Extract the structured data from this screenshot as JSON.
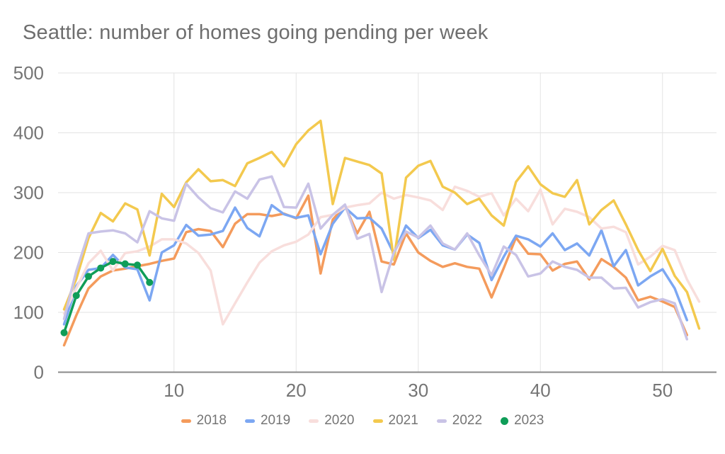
{
  "chart_data": {
    "type": "line",
    "title": "Seattle: number of homes going pending per week",
    "xlabel": "",
    "ylabel": "",
    "xlim": [
      1,
      53
    ],
    "ylim": [
      0,
      500
    ],
    "x_ticks": [
      10,
      20,
      30,
      40,
      50
    ],
    "y_ticks": [
      0,
      100,
      200,
      300,
      400,
      500
    ],
    "grid": true,
    "legend_position": "bottom",
    "colors": {
      "grid": "#e3e3e3",
      "axis": "#8a8a8a",
      "axis_text": "#757575",
      "title_text": "#6e6e6e"
    },
    "series": [
      {
        "name": "2018",
        "color": "#F49B5C",
        "marker": "none",
        "start_week": 1,
        "values": [
          45,
          95,
          140,
          160,
          170,
          173,
          177,
          181,
          186,
          190,
          234,
          239,
          236,
          209,
          248,
          264,
          264,
          261,
          265,
          257,
          295,
          165,
          255,
          278,
          232,
          268,
          185,
          180,
          232,
          200,
          186,
          176,
          182,
          176,
          173,
          125,
          174,
          225,
          198,
          197,
          170,
          181,
          185,
          155,
          189,
          176,
          158,
          120,
          126,
          118,
          109,
          62
        ]
      },
      {
        "name": "2019",
        "color": "#7CA7F2",
        "marker": "none",
        "start_week": 1,
        "values": [
          80,
          144,
          171,
          174,
          196,
          175,
          172,
          120,
          200,
          212,
          246,
          228,
          230,
          236,
          275,
          241,
          227,
          279,
          264,
          258,
          262,
          197,
          248,
          275,
          257,
          258,
          240,
          198,
          245,
          224,
          238,
          212,
          205,
          230,
          216,
          154,
          193,
          228,
          222,
          210,
          232,
          204,
          215,
          195,
          237,
          177,
          204,
          145,
          160,
          172,
          140,
          87
        ]
      },
      {
        "name": "2020",
        "color": "#F8DEDC",
        "marker": "none",
        "start_week": 1,
        "values": [
          98,
          140,
          182,
          203,
          170,
          199,
          202,
          210,
          222,
          222,
          215,
          199,
          170,
          80,
          115,
          150,
          183,
          202,
          212,
          218,
          230,
          259,
          263,
          275,
          279,
          282,
          300,
          290,
          296,
          292,
          287,
          271,
          310,
          303,
          293,
          299,
          262,
          290,
          269,
          305,
          247,
          273,
          268,
          259,
          240,
          243,
          234,
          180,
          193,
          211,
          204,
          155,
          118
        ]
      },
      {
        "name": "2021",
        "color": "#F3C94E",
        "marker": "none",
        "start_week": 1,
        "values": [
          105,
          156,
          224,
          266,
          252,
          282,
          272,
          195,
          298,
          276,
          317,
          339,
          319,
          321,
          311,
          349,
          358,
          368,
          344,
          381,
          404,
          420,
          281,
          358,
          352,
          346,
          332,
          188,
          325,
          345,
          353,
          310,
          300,
          281,
          290,
          262,
          245,
          318,
          344,
          314,
          299,
          293,
          321,
          247,
          271,
          287,
          247,
          204,
          169,
          206,
          161,
          134,
          73
        ]
      },
      {
        "name": "2022",
        "color": "#C9C3E6",
        "marker": "none",
        "start_week": 1,
        "values": [
          89,
          169,
          232,
          235,
          237,
          232,
          217,
          269,
          257,
          253,
          315,
          292,
          274,
          267,
          302,
          290,
          322,
          327,
          276,
          275,
          315,
          240,
          263,
          280,
          223,
          231,
          134,
          200,
          235,
          225,
          245,
          215,
          205,
          232,
          195,
          162,
          210,
          196,
          160,
          165,
          185,
          176,
          171,
          158,
          158,
          140,
          141,
          108,
          117,
          122,
          115,
          55
        ]
      },
      {
        "name": "2023",
        "color": "#0F9D58",
        "marker": "circle",
        "start_week": 1,
        "values": [
          66,
          128,
          160,
          174,
          185,
          181,
          179,
          150
        ]
      }
    ]
  }
}
